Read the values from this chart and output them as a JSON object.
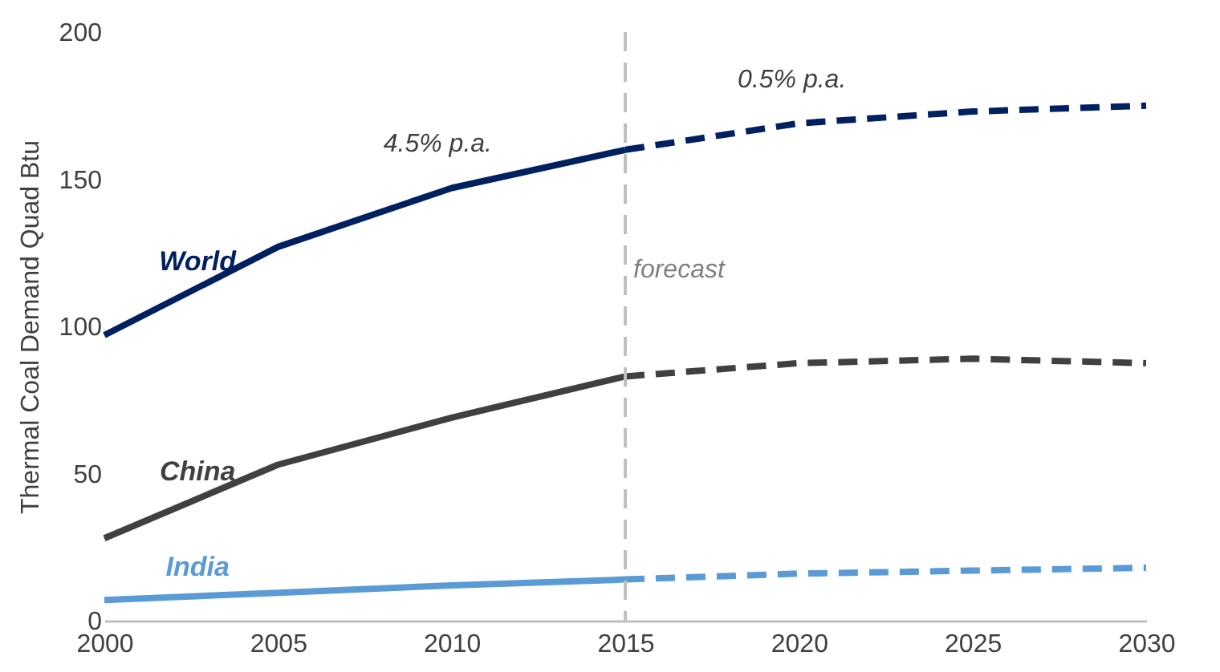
{
  "chart_data": {
    "type": "line",
    "ylabel": "Thermal Coal Demand  Quad Btu",
    "xlim": [
      2000,
      2030
    ],
    "xticks": [
      2000,
      2005,
      2010,
      2015,
      2020,
      2025,
      2030
    ],
    "ylim": [
      0,
      200
    ],
    "yticks": [
      0,
      50,
      100,
      150,
      200
    ],
    "grid": false,
    "marker": "none",
    "series": [
      {
        "name": "World",
        "color": "#002060",
        "line_style": "solid",
        "x": [
          2000,
          2005,
          2010,
          2015
        ],
        "values": [
          97,
          127,
          147,
          160
        ]
      },
      {
        "color": "#002060",
        "line_style": "dashed",
        "x": [
          2015,
          2020,
          2025,
          2030
        ],
        "values": [
          160,
          169,
          173,
          175
        ]
      },
      {
        "name": "China",
        "color": "#404040",
        "line_style": "solid",
        "x": [
          2000,
          2005,
          2010,
          2015
        ],
        "values": [
          28,
          53,
          69,
          83
        ]
      },
      {
        "color": "#404040",
        "line_style": "dashed",
        "x": [
          2015,
          2020,
          2025,
          2030
        ],
        "values": [
          83,
          87.5,
          89,
          87.5
        ]
      },
      {
        "name": "India",
        "color": "#5b9bd5",
        "line_style": "solid",
        "x": [
          2000,
          2005,
          2010,
          2015
        ],
        "values": [
          7,
          9.5,
          12,
          14
        ]
      },
      {
        "color": "#5b9bd5",
        "line_style": "dashed",
        "x": [
          2015,
          2020,
          2025,
          2030
        ],
        "values": [
          14,
          16,
          17,
          18
        ]
      }
    ],
    "ref_lines": [
      {
        "axis": "x",
        "value": 2015,
        "label": "forecast",
        "color": "#bfbfbf",
        "line_style": "dashed"
      }
    ],
    "annotations": [
      "4.5% p.a.",
      "0.5% p.a."
    ]
  }
}
